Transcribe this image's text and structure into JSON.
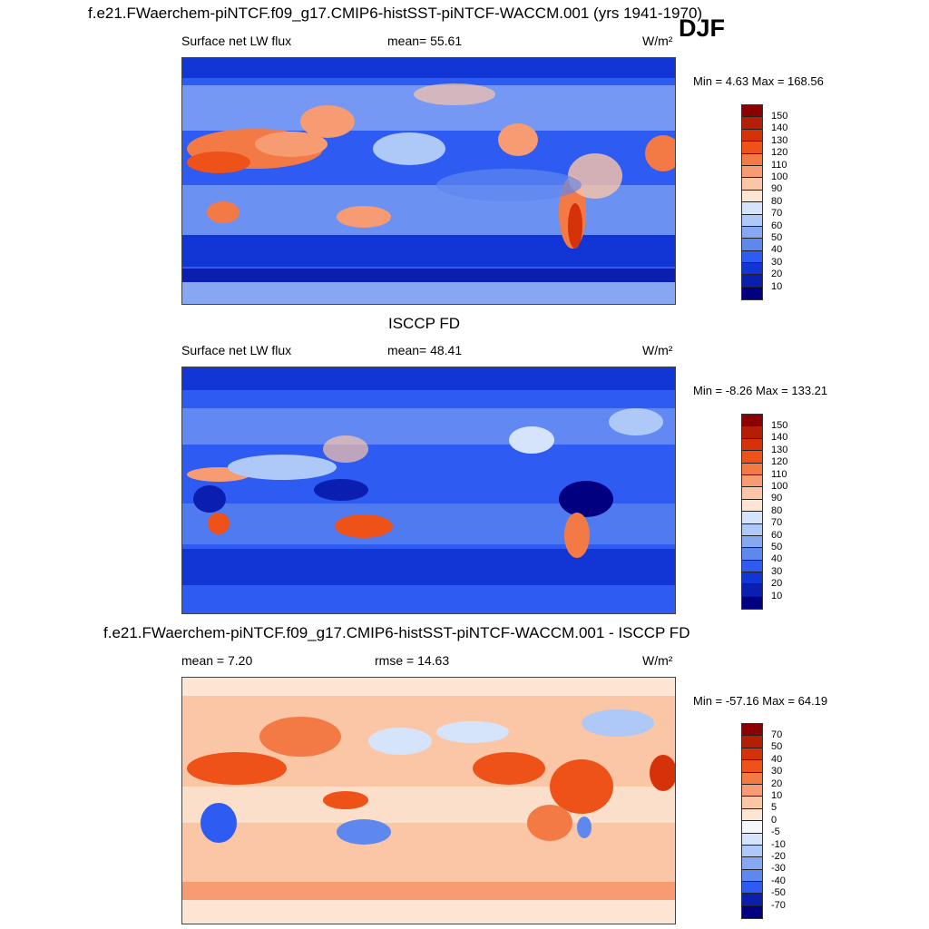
{
  "main_title": "f.e21.FWaerchem-piNTCF.f09_g17.CMIP6-histSST-piNTCF-WACCM.001 (yrs 1941-1970)",
  "season": "DJF",
  "panels": [
    {
      "id": "model",
      "left_label": "Surface net LW flux",
      "center_label": "mean=  55.61",
      "units": "W/m²",
      "minmax": "Min =   4.63 Max = 168.56",
      "colorbar_labels": [
        "150",
        "140",
        "130",
        "120",
        "110",
        "100",
        "90",
        "80",
        "70",
        "60",
        "50",
        "40",
        "30",
        "20",
        "10"
      ],
      "colorbar_colors": [
        "#8b0000",
        "#b31e05",
        "#d6320a",
        "#ee5219",
        "#f47a45",
        "#f79b73",
        "#fbc6a6",
        "#fde5d3",
        "#d5e4fb",
        "#aec8f7",
        "#86a8f3",
        "#5f88ef",
        "#2e5bf2",
        "#1236d6",
        "#0a1fb0",
        "#000080"
      ]
    },
    {
      "id": "obs",
      "subtitle": "ISCCP FD",
      "left_label": "Surface net LW flux",
      "center_label": "mean=  48.41",
      "units": "W/m²",
      "minmax": "Min =  -8.26 Max = 133.21",
      "colorbar_labels": [
        "150",
        "140",
        "130",
        "120",
        "110",
        "100",
        "90",
        "80",
        "70",
        "60",
        "50",
        "40",
        "30",
        "20",
        "10"
      ],
      "colorbar_colors": [
        "#8b0000",
        "#b31e05",
        "#d6320a",
        "#ee5219",
        "#f47a45",
        "#f79b73",
        "#fbc6a6",
        "#fde5d3",
        "#d5e4fb",
        "#aec8f7",
        "#86a8f3",
        "#5f88ef",
        "#2e5bf2",
        "#1236d6",
        "#0a1fb0",
        "#000080"
      ]
    },
    {
      "id": "diff",
      "subtitle": "f.e21.FWaerchem-piNTCF.f09_g17.CMIP6-histSST-piNTCF-WACCM.001 - ISCCP FD",
      "left_label": "mean =   7.20",
      "center_label": "rmse =  14.63",
      "units": "W/m²",
      "minmax": "Min = -57.16 Max =  64.19",
      "colorbar_labels": [
        "70",
        "50",
        "40",
        "30",
        "20",
        "10",
        "5",
        "0",
        "-5",
        "-10",
        "-20",
        "-30",
        "-40",
        "-50",
        "-70"
      ],
      "colorbar_colors": [
        "#8b0000",
        "#b31e05",
        "#d6320a",
        "#ee5219",
        "#f47a45",
        "#f79b73",
        "#fbc6a6",
        "#fde5d3",
        "#f6f6ff",
        "#d5e4fb",
        "#aec8f7",
        "#86a8f3",
        "#5f88ef",
        "#2e5bf2",
        "#0a1fb0",
        "#000080"
      ]
    }
  ]
}
